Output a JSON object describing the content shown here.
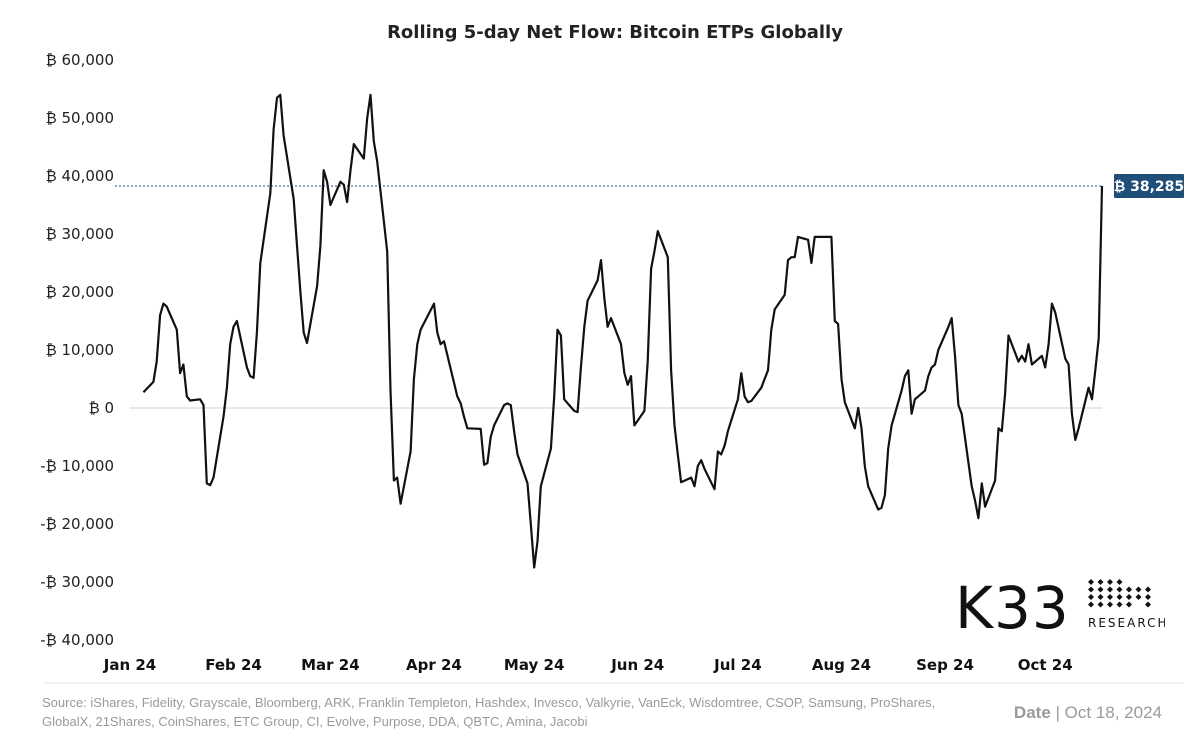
{
  "chart_data": {
    "type": "line",
    "title": "Rolling 5-day Net Flow: Bitcoin ETPs Globally",
    "xlabel": "",
    "ylabel": "",
    "ylim": [
      -40000,
      60000
    ],
    "yticks": [
      60000,
      50000,
      40000,
      30000,
      20000,
      10000,
      0,
      -10000,
      -20000,
      -30000,
      -40000
    ],
    "ytick_labels": [
      "₿ 60,000",
      "₿ 50,000",
      "₿ 40,000",
      "₿ 30,000",
      "₿ 20,000",
      "₿ 10,000",
      "₿ 0",
      "-₿ 10,000",
      "-₿ 20,000",
      "-₿ 30,000",
      "-₿ 40,000"
    ],
    "xtick_labels": [
      "Jan 24",
      "Feb 24",
      "Mar 24",
      "Apr 24",
      "May 24",
      "Jun 24",
      "Jul 24",
      "Aug 24",
      "Sep 24",
      "Oct 24"
    ],
    "xtick_dates": [
      "2024-01-01",
      "2024-02-01",
      "2024-03-01",
      "2024-04-01",
      "2024-05-01",
      "2024-06-01",
      "2024-07-01",
      "2024-08-01",
      "2024-09-01",
      "2024-10-01"
    ],
    "xlim": [
      "2024-01-01",
      "2024-10-18"
    ],
    "grid": false,
    "reference_line": {
      "value": 38285,
      "label": "₿ 38,285",
      "style": "dotted",
      "color": "#1f4e79"
    },
    "series": [
      {
        "color": "#111111",
        "points": [
          [
            "2024-01-05",
            2700
          ],
          [
            "2024-01-08",
            4500
          ],
          [
            "2024-01-09",
            8000
          ],
          [
            "2024-01-10",
            16000
          ],
          [
            "2024-01-11",
            18000
          ],
          [
            "2024-01-12",
            17500
          ],
          [
            "2024-01-15",
            13500
          ],
          [
            "2024-01-16",
            6000
          ],
          [
            "2024-01-17",
            7500
          ],
          [
            "2024-01-18",
            2000
          ],
          [
            "2024-01-19",
            1300
          ],
          [
            "2024-01-22",
            1500
          ],
          [
            "2024-01-23",
            500
          ],
          [
            "2024-01-24",
            -13000
          ],
          [
            "2024-01-25",
            -13300
          ],
          [
            "2024-01-26",
            -12000
          ],
          [
            "2024-01-29",
            -1500
          ],
          [
            "2024-01-30",
            3500
          ],
          [
            "2024-01-31",
            11000
          ],
          [
            "2024-02-01",
            14000
          ],
          [
            "2024-02-02",
            15000
          ],
          [
            "2024-02-05",
            7000
          ],
          [
            "2024-02-06",
            5500
          ],
          [
            "2024-02-07",
            5200
          ],
          [
            "2024-02-08",
            13000
          ],
          [
            "2024-02-09",
            25000
          ],
          [
            "2024-02-12",
            37000
          ],
          [
            "2024-02-13",
            48000
          ],
          [
            "2024-02-14",
            53500
          ],
          [
            "2024-02-15",
            54000
          ],
          [
            "2024-02-16",
            47000
          ],
          [
            "2024-02-19",
            36000
          ],
          [
            "2024-02-20",
            28000
          ],
          [
            "2024-02-21",
            20000
          ],
          [
            "2024-02-22",
            13000
          ],
          [
            "2024-02-23",
            11200
          ],
          [
            "2024-02-26",
            21000
          ],
          [
            "2024-02-27",
            28000
          ],
          [
            "2024-02-28",
            41000
          ],
          [
            "2024-02-29",
            39000
          ],
          [
            "2024-03-01",
            35000
          ],
          [
            "2024-03-04",
            39000
          ],
          [
            "2024-03-05",
            38500
          ],
          [
            "2024-03-06",
            35500
          ],
          [
            "2024-03-07",
            41000
          ],
          [
            "2024-03-08",
            45500
          ],
          [
            "2024-03-11",
            43000
          ],
          [
            "2024-03-12",
            50000
          ],
          [
            "2024-03-13",
            54000
          ],
          [
            "2024-03-14",
            46000
          ],
          [
            "2024-03-15",
            42500
          ],
          [
            "2024-03-18",
            27000
          ],
          [
            "2024-03-19",
            3000
          ],
          [
            "2024-03-20",
            -12500
          ],
          [
            "2024-03-21",
            -12000
          ],
          [
            "2024-03-22",
            -16500
          ],
          [
            "2024-03-25",
            -7500
          ],
          [
            "2024-03-26",
            5000
          ],
          [
            "2024-03-27",
            11000
          ],
          [
            "2024-03-28",
            13500
          ],
          [
            "2024-04-01",
            18000
          ],
          [
            "2024-04-02",
            13000
          ],
          [
            "2024-04-03",
            11000
          ],
          [
            "2024-04-04",
            11500
          ],
          [
            "2024-04-08",
            2000
          ],
          [
            "2024-04-09",
            800
          ],
          [
            "2024-04-10",
            -1500
          ],
          [
            "2024-04-11",
            -3500
          ],
          [
            "2024-04-15",
            -3600
          ],
          [
            "2024-04-16",
            -9800
          ],
          [
            "2024-04-17",
            -9500
          ],
          [
            "2024-04-18",
            -5000
          ],
          [
            "2024-04-19",
            -3000
          ],
          [
            "2024-04-22",
            500
          ],
          [
            "2024-04-23",
            800
          ],
          [
            "2024-04-24",
            500
          ],
          [
            "2024-04-25",
            -4000
          ],
          [
            "2024-04-26",
            -8000
          ],
          [
            "2024-04-29",
            -13000
          ],
          [
            "2024-04-30",
            -20000
          ],
          [
            "2024-05-01",
            -27500
          ],
          [
            "2024-05-02",
            -23000
          ],
          [
            "2024-05-03",
            -13500
          ],
          [
            "2024-05-06",
            -7000
          ],
          [
            "2024-05-07",
            2000
          ],
          [
            "2024-05-08",
            13500
          ],
          [
            "2024-05-09",
            12500
          ],
          [
            "2024-05-10",
            1500
          ],
          [
            "2024-05-13",
            -500
          ],
          [
            "2024-05-14",
            -700
          ],
          [
            "2024-05-15",
            7000
          ],
          [
            "2024-05-16",
            14000
          ],
          [
            "2024-05-17",
            18500
          ],
          [
            "2024-05-20",
            22000
          ],
          [
            "2024-05-21",
            25500
          ],
          [
            "2024-05-22",
            19000
          ],
          [
            "2024-05-23",
            14000
          ],
          [
            "2024-05-24",
            15500
          ],
          [
            "2024-05-27",
            11000
          ],
          [
            "2024-05-28",
            6000
          ],
          [
            "2024-05-29",
            4000
          ],
          [
            "2024-05-30",
            5500
          ],
          [
            "2024-05-31",
            -3000
          ],
          [
            "2024-06-03",
            -500
          ],
          [
            "2024-06-04",
            8000
          ],
          [
            "2024-06-05",
            24000
          ],
          [
            "2024-06-06",
            27000
          ],
          [
            "2024-06-07",
            30500
          ],
          [
            "2024-06-10",
            26000
          ],
          [
            "2024-06-11",
            6500
          ],
          [
            "2024-06-12",
            -3000
          ],
          [
            "2024-06-13",
            -8000
          ],
          [
            "2024-06-14",
            -12800
          ],
          [
            "2024-06-17",
            -12000
          ],
          [
            "2024-06-18",
            -13500
          ],
          [
            "2024-06-19",
            -10000
          ],
          [
            "2024-06-20",
            -9000
          ],
          [
            "2024-06-21",
            -10500
          ],
          [
            "2024-06-24",
            -14000
          ],
          [
            "2024-06-25",
            -7500
          ],
          [
            "2024-06-26",
            -8000
          ],
          [
            "2024-06-27",
            -6500
          ],
          [
            "2024-06-28",
            -4000
          ],
          [
            "2024-07-01",
            1500
          ],
          [
            "2024-07-02",
            6000
          ],
          [
            "2024-07-03",
            2000
          ],
          [
            "2024-07-04",
            1000
          ],
          [
            "2024-07-05",
            1200
          ],
          [
            "2024-07-08",
            3500
          ],
          [
            "2024-07-09",
            5000
          ],
          [
            "2024-07-10",
            6500
          ],
          [
            "2024-07-11",
            13500
          ],
          [
            "2024-07-12",
            17000
          ],
          [
            "2024-07-15",
            19500
          ],
          [
            "2024-07-16",
            25500
          ],
          [
            "2024-07-17",
            26000
          ],
          [
            "2024-07-18",
            26000
          ],
          [
            "2024-07-19",
            29500
          ],
          [
            "2024-07-22",
            29000
          ],
          [
            "2024-07-23",
            25000
          ],
          [
            "2024-07-24",
            29500
          ],
          [
            "2024-07-26",
            29500
          ],
          [
            "2024-07-29",
            29500
          ],
          [
            "2024-07-30",
            15000
          ],
          [
            "2024-07-31",
            14500
          ],
          [
            "2024-08-01",
            5000
          ],
          [
            "2024-08-02",
            1000
          ],
          [
            "2024-08-05",
            -3500
          ],
          [
            "2024-08-06",
            0
          ],
          [
            "2024-08-07",
            -3500
          ],
          [
            "2024-08-08",
            -10000
          ],
          [
            "2024-08-09",
            -13500
          ],
          [
            "2024-08-12",
            -17500
          ],
          [
            "2024-08-13",
            -17200
          ],
          [
            "2024-08-14",
            -15000
          ],
          [
            "2024-08-15",
            -7000
          ],
          [
            "2024-08-16",
            -3000
          ],
          [
            "2024-08-19",
            3000
          ],
          [
            "2024-08-20",
            5500
          ],
          [
            "2024-08-21",
            6500
          ],
          [
            "2024-08-22",
            -1000
          ],
          [
            "2024-08-23",
            1500
          ],
          [
            "2024-08-26",
            3000
          ],
          [
            "2024-08-27",
            5500
          ],
          [
            "2024-08-28",
            7000
          ],
          [
            "2024-08-29",
            7500
          ],
          [
            "2024-08-30",
            10000
          ],
          [
            "2024-09-02",
            14000
          ],
          [
            "2024-09-03",
            15500
          ],
          [
            "2024-09-04",
            9000
          ],
          [
            "2024-09-05",
            500
          ],
          [
            "2024-09-06",
            -1000
          ],
          [
            "2024-09-09",
            -13500
          ],
          [
            "2024-09-10",
            -16000
          ],
          [
            "2024-09-11",
            -19000
          ],
          [
            "2024-09-12",
            -13000
          ],
          [
            "2024-09-13",
            -17000
          ],
          [
            "2024-09-16",
            -12500
          ],
          [
            "2024-09-17",
            -3500
          ],
          [
            "2024-09-18",
            -4000
          ],
          [
            "2024-09-19",
            2500
          ],
          [
            "2024-09-20",
            12500
          ],
          [
            "2024-09-23",
            8000
          ],
          [
            "2024-09-24",
            9000
          ],
          [
            "2024-09-25",
            8000
          ],
          [
            "2024-09-26",
            11000
          ],
          [
            "2024-09-27",
            7500
          ],
          [
            "2024-09-30",
            9000
          ],
          [
            "2024-10-01",
            7000
          ],
          [
            "2024-10-02",
            11000
          ],
          [
            "2024-10-03",
            18000
          ],
          [
            "2024-10-04",
            16500
          ],
          [
            "2024-10-07",
            8500
          ],
          [
            "2024-10-08",
            7500
          ],
          [
            "2024-10-09",
            -1000
          ],
          [
            "2024-10-10",
            -5500
          ],
          [
            "2024-10-11",
            -3500
          ],
          [
            "2024-10-14",
            3500
          ],
          [
            "2024-10-15",
            1500
          ],
          [
            "2024-10-16",
            6500
          ],
          [
            "2024-10-17",
            12000
          ],
          [
            "2024-10-18",
            38285
          ]
        ]
      }
    ]
  },
  "footer": {
    "source": "Source:  iShares, Fidelity, Grayscale, Bloomberg, ARK, Franklin Templeton, Hashdex, Invesco, Valkyrie, VanEck, Wisdomtree, CSOP, Samsung, ProShares, GlobalX, 21Shares, CoinShares, ETC Group, CI, Evolve, Purpose, DDA, QBTC, Amina, Jacobi",
    "date_label": "Date",
    "date_separator": " | ",
    "date_value": "Oct 18, 2024"
  },
  "logo": {
    "text": "K33",
    "subtitle": "RESEARCH"
  }
}
